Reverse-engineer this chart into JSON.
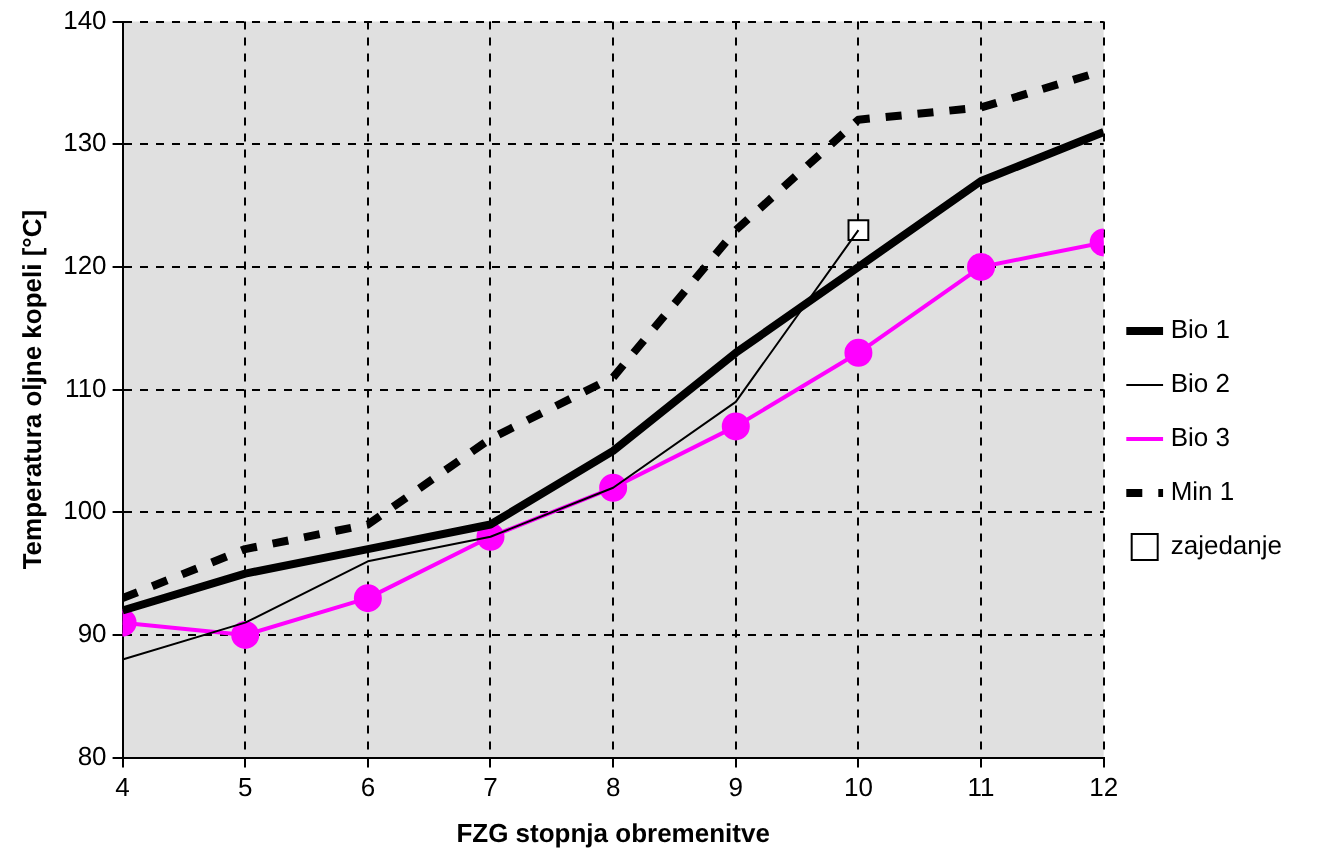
{
  "chart_data": {
    "type": "line",
    "xlabel": "FZG stopnja obremenitve",
    "ylabel": "Temperatura oljne kopeli [°C]",
    "x": [
      4,
      5,
      6,
      7,
      8,
      9,
      10,
      11,
      12
    ],
    "xlim": [
      4,
      12
    ],
    "xticks": [
      4,
      5,
      6,
      7,
      8,
      9,
      10,
      11,
      12
    ],
    "ylim": [
      80,
      140
    ],
    "yticks": [
      80,
      90,
      100,
      110,
      120,
      130,
      140
    ],
    "grid": true,
    "legend": "right",
    "series": [
      {
        "name": "Bio 1",
        "color": "#000000",
        "line_style": "solid",
        "marker": "none",
        "values": [
          92,
          95,
          97,
          99,
          105,
          113,
          120,
          127,
          131
        ]
      },
      {
        "name": "Bio 2",
        "color": "#000000",
        "line_style": "solid",
        "marker": "none",
        "values": [
          88,
          91,
          96,
          98,
          102,
          109,
          123,
          null,
          null
        ]
      },
      {
        "name": "Bio 3",
        "color": "#ff00ff",
        "line_style": "solid",
        "marker": "circle",
        "values": [
          91,
          90,
          93,
          98,
          102,
          107,
          113,
          120,
          122
        ]
      },
      {
        "name": "Min 1",
        "color": "#000000",
        "line_style": "dashed",
        "marker": "none",
        "values": [
          93,
          97,
          99,
          106,
          111,
          123,
          132,
          133,
          136
        ]
      },
      {
        "name": "zajedanje",
        "type": "scatter",
        "color": "#ffffff",
        "marker": "square",
        "x": [
          10
        ],
        "values": [
          123
        ]
      }
    ]
  }
}
